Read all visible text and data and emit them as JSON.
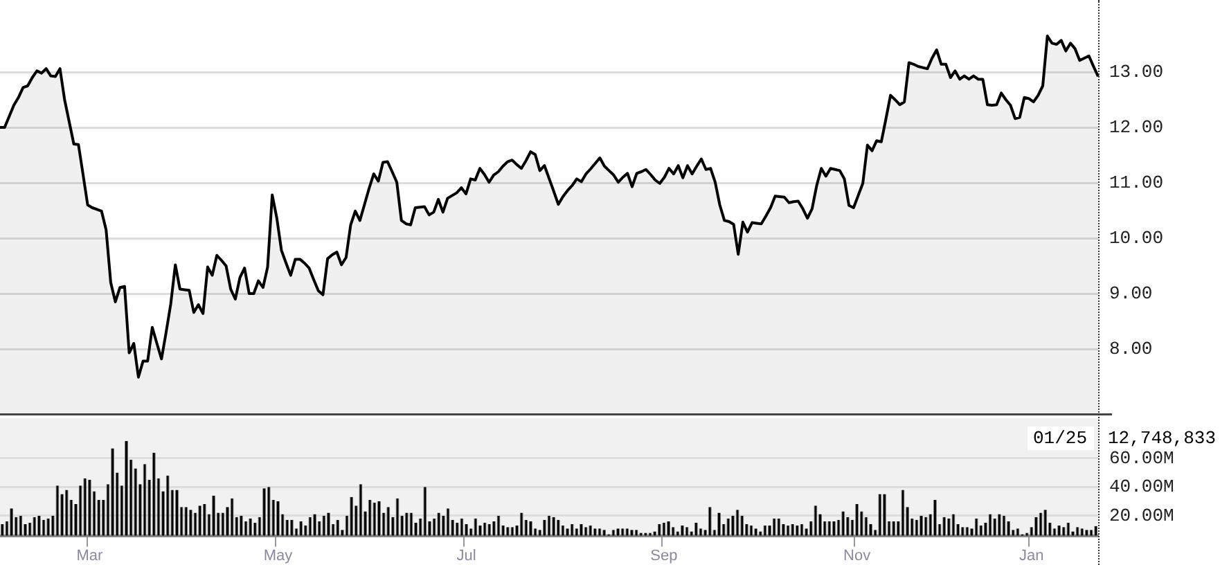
{
  "chart_data": [
    {
      "type": "area",
      "tick_labels": "y",
      "grid": "y",
      "ylim": [
        6.8,
        14.3
      ],
      "yticks": [
        {
          "value": 8,
          "label": "8.00"
        },
        {
          "value": 9,
          "label": "9.00"
        },
        {
          "value": 10,
          "label": "10.00"
        },
        {
          "value": 11,
          "label": "11.00"
        },
        {
          "value": 12,
          "label": "12.00"
        },
        {
          "value": 13,
          "label": "13.00"
        }
      ],
      "categories": [
        null,
        null,
        null,
        null,
        null,
        null,
        null,
        null,
        null,
        null,
        null,
        null,
        null,
        null,
        null,
        null,
        null,
        null,
        null,
        null,
        null,
        null,
        null,
        null,
        null,
        null,
        null,
        null,
        null,
        null,
        null,
        null,
        null,
        null,
        null,
        null,
        null,
        null,
        null,
        null,
        null,
        null,
        null,
        null,
        null,
        null,
        null,
        null,
        null,
        null,
        null,
        null,
        null,
        null,
        null,
        null,
        null,
        null,
        null,
        null,
        null,
        null,
        null,
        null,
        null,
        null,
        null,
        null,
        null,
        null,
        null,
        null,
        null,
        null,
        null,
        null,
        null,
        null,
        null,
        null,
        null,
        null,
        null,
        null,
        null,
        null,
        null,
        null,
        null,
        null,
        null,
        null,
        null,
        null,
        null,
        null,
        null,
        null,
        null,
        null,
        null,
        null,
        null,
        null,
        null,
        null,
        null,
        null,
        null,
        null,
        null,
        null,
        null,
        null,
        null,
        null,
        null,
        null,
        null,
        null,
        null,
        null,
        null,
        null,
        null,
        null,
        null,
        null,
        null,
        null,
        null,
        null,
        null,
        null,
        null,
        null,
        null,
        null,
        null,
        null,
        null,
        null,
        null,
        null,
        null,
        null,
        null,
        null,
        null,
        null,
        null,
        null,
        null,
        null,
        null,
        null,
        null,
        null,
        null,
        null,
        null,
        null,
        null,
        null,
        null,
        null,
        null,
        null,
        null,
        null,
        null,
        null,
        null,
        null,
        null,
        null,
        null,
        null,
        null,
        null,
        null,
        null,
        null,
        null,
        null,
        null,
        null,
        null,
        null,
        null,
        null,
        null,
        null,
        null,
        null,
        null,
        null,
        null,
        null,
        null,
        null,
        null,
        null,
        null,
        null,
        null,
        null,
        null,
        null,
        null,
        null,
        null,
        null,
        null,
        null,
        null,
        null,
        null,
        null,
        null,
        null,
        null,
        null,
        null,
        null,
        null,
        null,
        null,
        null,
        null,
        null,
        null,
        null,
        null,
        null,
        null,
        null,
        null,
        null
      ],
      "series": [
        {
          "color": "#000000",
          "values": [
            12.0,
            12.0,
            12.2,
            12.4,
            12.54,
            12.72,
            12.75,
            12.9,
            13.02,
            12.98,
            13.06,
            12.93,
            12.92,
            13.06,
            12.5,
            12.1,
            11.7,
            11.69,
            11.15,
            10.6,
            10.55,
            10.52,
            10.49,
            10.15,
            9.2,
            8.85,
            9.11,
            9.13,
            7.93,
            8.1,
            7.49,
            7.78,
            7.78,
            8.39,
            8.1,
            7.82,
            8.3,
            8.81,
            9.52,
            9.08,
            9.07,
            9.06,
            8.66,
            8.8,
            8.64,
            9.48,
            9.33,
            9.69,
            9.6,
            9.5,
            9.08,
            8.9,
            9.29,
            9.46,
            9.0,
            9.0,
            9.23,
            9.11,
            9.48,
            10.78,
            10.36,
            9.78,
            9.55,
            9.33,
            9.62,
            9.62,
            9.55,
            9.46,
            9.25,
            9.05,
            8.98,
            9.63,
            9.7,
            9.75,
            9.52,
            9.65,
            10.24,
            10.49,
            10.32,
            10.61,
            10.9,
            11.16,
            11.03,
            11.37,
            11.38,
            11.2,
            11.01,
            10.32,
            10.26,
            10.24,
            10.55,
            10.56,
            10.57,
            10.42,
            10.47,
            10.7,
            10.47,
            10.72,
            10.77,
            10.82,
            10.91,
            10.8,
            11.07,
            11.05,
            11.26,
            11.15,
            11.01,
            11.14,
            11.2,
            11.3,
            11.38,
            11.41,
            11.33,
            11.26,
            11.4,
            11.56,
            11.51,
            11.22,
            11.31,
            11.08,
            10.85,
            10.61,
            10.75,
            10.86,
            10.95,
            11.07,
            11.02,
            11.16,
            11.25,
            11.35,
            11.45,
            11.3,
            11.22,
            11.14,
            11.01,
            11.1,
            11.17,
            10.93,
            11.17,
            11.2,
            11.24,
            11.15,
            11.05,
            10.99,
            11.1,
            11.26,
            11.16,
            11.31,
            11.09,
            11.31,
            11.16,
            11.3,
            11.43,
            11.24,
            11.26,
            11.01,
            10.6,
            10.32,
            10.3,
            10.25,
            9.71,
            10.29,
            10.11,
            10.28,
            10.27,
            10.26,
            10.4,
            10.55,
            10.76,
            10.75,
            10.74,
            10.64,
            10.66,
            10.67,
            10.53,
            10.36,
            10.53,
            10.95,
            11.26,
            11.12,
            11.26,
            11.24,
            11.22,
            11.07,
            10.59,
            10.55,
            10.77,
            10.99,
            11.68,
            11.58,
            11.76,
            11.74,
            12.15,
            12.58,
            12.5,
            12.41,
            12.46,
            13.17,
            13.14,
            13.1,
            13.08,
            13.06,
            13.25,
            13.4,
            13.14,
            13.14,
            12.9,
            13.02,
            12.87,
            12.93,
            12.87,
            12.93,
            12.87,
            12.87,
            12.41,
            12.4,
            12.41,
            12.62,
            12.5,
            12.4,
            12.16,
            12.18,
            12.54,
            12.52,
            12.46,
            12.58,
            12.75,
            13.65,
            13.52,
            13.5,
            13.57,
            13.38,
            13.52,
            13.42,
            13.21,
            13.25,
            13.29,
            13.1,
            12.92
          ]
        }
      ]
    },
    {
      "type": "bar",
      "grid": "y",
      "color": "#000000",
      "ylim": [
        6,
        88
      ],
      "yticks": [
        {
          "value": 20,
          "label": "20.00M"
        },
        {
          "value": 40,
          "label": "40.00M"
        },
        {
          "value": 60,
          "label": "60.00M"
        }
      ],
      "annotations": [
        "01/25",
        "12,748,833"
      ],
      "categories": [
        null,
        null,
        null,
        null,
        null,
        null,
        null,
        null,
        null,
        null,
        null,
        null,
        null,
        null,
        null,
        null,
        null,
        null,
        null,
        "Mar",
        null,
        null,
        null,
        null,
        null,
        null,
        null,
        null,
        null,
        null,
        null,
        null,
        null,
        null,
        null,
        null,
        null,
        null,
        null,
        null,
        null,
        null,
        null,
        null,
        null,
        null,
        null,
        null,
        null,
        null,
        null,
        null,
        null,
        null,
        null,
        null,
        null,
        null,
        null,
        null,
        "May",
        null,
        null,
        null,
        null,
        null,
        null,
        null,
        null,
        null,
        null,
        null,
        null,
        null,
        null,
        null,
        null,
        null,
        null,
        null,
        null,
        null,
        null,
        null,
        null,
        null,
        null,
        null,
        null,
        null,
        null,
        null,
        null,
        null,
        null,
        null,
        null,
        null,
        null,
        null,
        null,
        "Jul",
        null,
        null,
        null,
        null,
        null,
        null,
        null,
        null,
        null,
        null,
        null,
        null,
        null,
        null,
        null,
        null,
        null,
        null,
        null,
        null,
        null,
        null,
        null,
        null,
        null,
        null,
        null,
        null,
        null,
        null,
        null,
        null,
        null,
        null,
        null,
        null,
        null,
        null,
        null,
        null,
        null,
        null,
        "Sep",
        null,
        null,
        null,
        null,
        null,
        null,
        null,
        null,
        null,
        null,
        null,
        null,
        null,
        null,
        null,
        null,
        null,
        null,
        null,
        null,
        null,
        null,
        null,
        null,
        null,
        null,
        null,
        null,
        null,
        null,
        null,
        null,
        null,
        null,
        null,
        null,
        null,
        null,
        null,
        null,
        null,
        "Nov",
        null,
        null,
        null,
        null,
        null,
        null,
        null,
        null,
        null,
        null,
        null,
        null,
        null,
        null,
        null,
        null,
        null,
        null,
        null,
        null,
        null,
        null,
        null,
        null,
        null,
        null,
        null,
        null,
        null,
        null,
        null,
        null,
        null,
        null,
        null,
        null,
        null,
        "Jan",
        null,
        null,
        null,
        null,
        null,
        null,
        null,
        null,
        null,
        null,
        null,
        null,
        null,
        null
      ],
      "values": [
        14,
        16,
        25,
        19,
        20,
        14,
        15,
        19,
        20,
        17,
        18,
        20,
        41,
        35,
        38,
        31,
        28,
        41,
        46,
        45,
        37,
        31,
        31,
        42,
        67,
        50,
        41,
        72,
        59,
        53,
        42,
        56,
        45,
        64,
        46,
        37,
        48,
        38,
        38,
        26,
        26,
        24,
        22,
        27,
        28,
        21,
        34,
        22,
        22,
        26,
        32,
        19,
        20,
        16,
        18,
        15,
        19,
        39,
        40,
        31,
        30,
        21,
        17,
        17,
        11,
        16,
        13,
        19,
        21,
        16,
        20,
        22,
        14,
        17,
        10,
        20,
        33,
        27,
        42,
        23,
        31,
        29,
        30,
        22,
        26,
        19,
        32,
        20,
        22,
        22,
        15,
        18,
        40,
        16,
        18,
        22,
        20,
        25,
        17,
        15,
        18,
        14,
        11,
        18,
        13,
        15,
        14,
        16,
        20,
        13,
        12,
        12,
        13,
        22,
        17,
        16,
        11,
        10,
        17,
        20,
        19,
        17,
        13,
        11,
        14,
        11,
        14,
        12,
        13,
        11,
        11,
        10,
        7,
        10,
        11,
        11,
        11,
        10,
        10,
        8,
        8,
        8,
        9,
        14,
        15,
        16,
        12,
        9,
        13,
        12,
        9,
        15,
        11,
        10,
        26,
        10,
        22,
        14,
        18,
        20,
        24,
        20,
        14,
        13,
        11,
        9,
        13,
        13,
        18,
        18,
        14,
        13,
        14,
        13,
        14,
        11,
        16,
        27,
        21,
        16,
        16,
        16,
        17,
        23,
        19,
        17,
        28,
        23,
        19,
        14,
        10,
        35,
        35,
        16,
        16,
        16,
        38,
        26,
        18,
        17,
        20,
        19,
        21,
        31,
        14,
        19,
        18,
        21,
        14,
        12,
        12,
        11,
        18,
        13,
        15,
        21,
        18,
        21,
        20,
        16,
        10,
        11,
        7,
        8,
        12,
        19,
        22,
        24,
        15,
        11,
        13,
        12,
        15,
        9,
        12,
        11,
        10,
        10,
        12.75
      ]
    }
  ]
}
